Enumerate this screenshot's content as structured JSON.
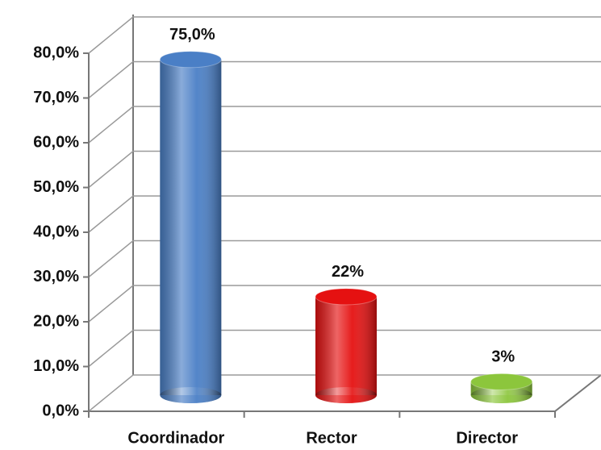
{
  "chart_data": {
    "type": "bar3d",
    "categories": [
      "Coordinador",
      "Rector",
      "Director"
    ],
    "values": [
      75,
      22,
      3
    ],
    "value_labels": [
      "75,0%",
      "22%",
      "3%"
    ],
    "colors": [
      "#4a7fc6",
      "#e51111",
      "#8cc63c"
    ],
    "ylim": [
      0,
      80
    ],
    "yticks": [
      {
        "value": 0,
        "label": "0,0%"
      },
      {
        "value": 10,
        "label": "10,0%"
      },
      {
        "value": 20,
        "label": "20,0%"
      },
      {
        "value": 30,
        "label": "30,0%"
      },
      {
        "value": 40,
        "label": "40,0%"
      },
      {
        "value": 50,
        "label": "50,0%"
      },
      {
        "value": 60,
        "label": "60,0%"
      },
      {
        "value": 70,
        "label": "70,0%"
      },
      {
        "value": 80,
        "label": "80,0%"
      }
    ],
    "grid": true
  }
}
